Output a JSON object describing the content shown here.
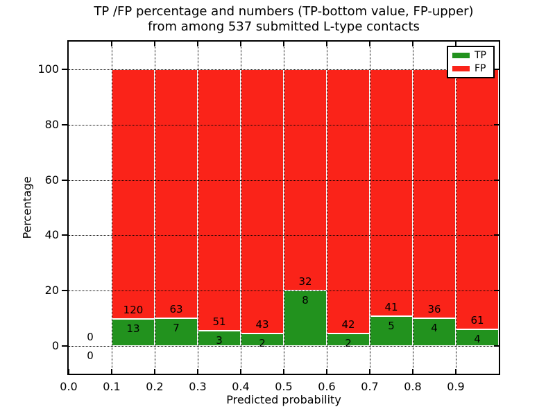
{
  "chart_data": {
    "type": "bar",
    "stacked": true,
    "normalized_to": 100,
    "title_line1": "TP /FP percentage and numbers (TP-bottom value, FP-upper)",
    "title_line2": "from among 537 submitted L-type contacts",
    "title": "TP /FP percentage and numbers (TP-bottom value, FP-upper)\nfrom among 537 submitted L-type contacts",
    "xlabel": "Predicted probability",
    "ylabel": "Percentage",
    "xlim": [
      0.0,
      1.0
    ],
    "ylim": [
      -10,
      110
    ],
    "xticks": [
      "0.0",
      "0.1",
      "0.2",
      "0.3",
      "0.4",
      "0.5",
      "0.6",
      "0.7",
      "0.8",
      "0.9"
    ],
    "yticks": [
      0,
      20,
      40,
      60,
      80,
      100
    ],
    "grid": true,
    "grid_style": "dotted",
    "legend_position": "upper right",
    "series": [
      {
        "name": "TP",
        "color": "#22921e"
      },
      {
        "name": "FP",
        "color": "#fa2319"
      }
    ],
    "bins": [
      {
        "range": [
          0.0,
          0.1
        ],
        "tp": 0,
        "fp": 0
      },
      {
        "range": [
          0.1,
          0.2
        ],
        "tp": 13,
        "fp": 120
      },
      {
        "range": [
          0.2,
          0.3
        ],
        "tp": 7,
        "fp": 63
      },
      {
        "range": [
          0.3,
          0.4
        ],
        "tp": 3,
        "fp": 51
      },
      {
        "range": [
          0.4,
          0.5
        ],
        "tp": 2,
        "fp": 43
      },
      {
        "range": [
          0.5,
          0.6
        ],
        "tp": 8,
        "fp": 32
      },
      {
        "range": [
          0.6,
          0.7
        ],
        "tp": 2,
        "fp": 42
      },
      {
        "range": [
          0.7,
          0.8
        ],
        "tp": 5,
        "fp": 41
      },
      {
        "range": [
          0.8,
          0.9
        ],
        "tp": 4,
        "fp": 36
      },
      {
        "range": [
          0.9,
          1.0
        ],
        "tp": 4,
        "fp": 61
      }
    ]
  }
}
